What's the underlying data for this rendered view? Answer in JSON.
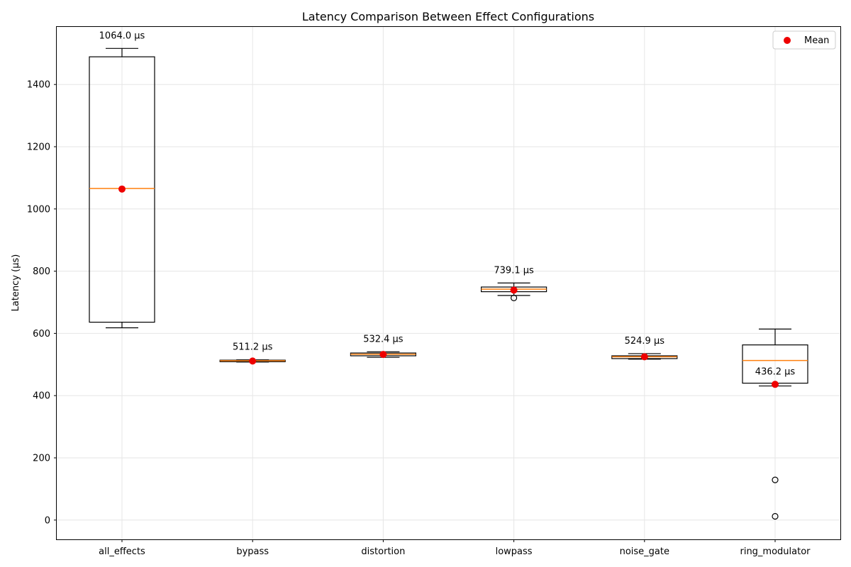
{
  "chart_data": {
    "type": "box",
    "title": "Latency Comparison Between Effect Configurations",
    "xlabel": "",
    "ylabel": "Latency (µs)",
    "ylim": [
      -62,
      1585
    ],
    "yticks": [
      0,
      200,
      400,
      600,
      800,
      1000,
      1200,
      1400
    ],
    "grid": true,
    "legend": {
      "placement": "top-right",
      "entries": [
        {
          "label": "Mean",
          "color": "#ee0000",
          "marker": "circle"
        }
      ]
    },
    "categories": [
      "all_effects",
      "bypass",
      "distortion",
      "lowpass",
      "noise_gate",
      "ring_modulator"
    ],
    "boxes": [
      {
        "category": "all_effects",
        "whisker_low": 618,
        "q1": 636,
        "median": 1066,
        "q3": 1489,
        "whisker_high": 1516,
        "mean": 1064.0,
        "mean_label": "1064.0 µs",
        "outliers": []
      },
      {
        "category": "bypass",
        "whisker_low": 508,
        "q1": 509,
        "median": 512,
        "q3": 514,
        "whisker_high": 515,
        "mean": 511.2,
        "mean_label": "511.2 µs",
        "outliers": []
      },
      {
        "category": "distortion",
        "whisker_low": 523,
        "q1": 528,
        "median": 533,
        "q3": 537,
        "whisker_high": 541,
        "mean": 532.4,
        "mean_label": "532.4 µs",
        "outliers": []
      },
      {
        "category": "lowpass",
        "whisker_low": 722,
        "q1": 734,
        "median": 742,
        "q3": 749,
        "whisker_high": 762,
        "mean": 739.1,
        "mean_label": "739.1 µs",
        "outliers": [
          714
        ]
      },
      {
        "category": "noise_gate",
        "whisker_low": 517,
        "q1": 519,
        "median": 525,
        "q3": 528,
        "whisker_high": 535,
        "mean": 524.9,
        "mean_label": "524.9 µs",
        "outliers": []
      },
      {
        "category": "ring_modulator",
        "whisker_low": 431,
        "q1": 440,
        "median": 513,
        "q3": 563,
        "whisker_high": 614,
        "mean": 436.2,
        "mean_label": "436.2 µs",
        "outliers": [
          129,
          12
        ]
      }
    ],
    "colors": {
      "box": "#000000",
      "median": "#ff7f0e",
      "mean": "#ee0000",
      "grid": "#e6e6e6"
    }
  }
}
